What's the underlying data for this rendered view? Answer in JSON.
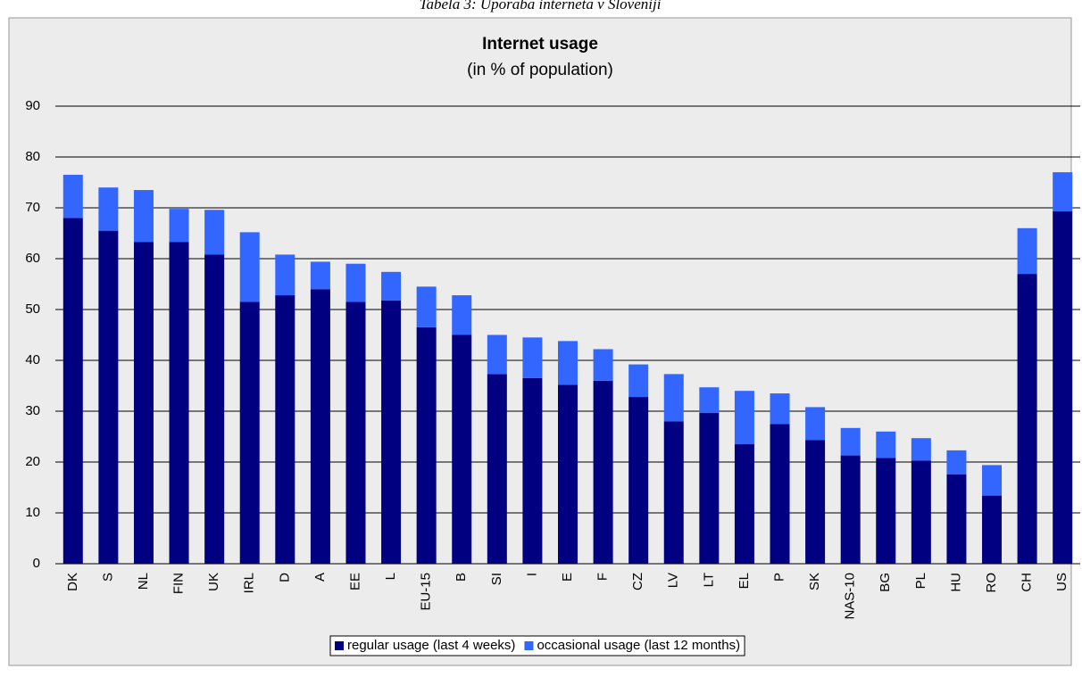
{
  "caption": "Tabela 3: Uporaba interneta v Sloveniji",
  "chart_data": {
    "type": "stacked_bar",
    "title": "Internet usage",
    "subtitle": "(in % of population)",
    "categories": [
      "DK",
      "S",
      "NL",
      "FIN",
      "UK",
      "IRL",
      "D",
      "A",
      "EE",
      "L",
      "EU-15",
      "B",
      "SI",
      "I",
      "E",
      "F",
      "CZ",
      "LV",
      "LT",
      "EL",
      "P",
      "SK",
      "NAS-10",
      "BG",
      "PL",
      "HU",
      "RO",
      "CH",
      "US"
    ],
    "series": [
      {
        "name": "regular usage (last 4 weeks)",
        "color": "#000080",
        "values": [
          68,
          65.5,
          63.3,
          63.3,
          60.8,
          51.5,
          52.8,
          54,
          51.5,
          51.8,
          46.5,
          45,
          37.3,
          36.5,
          35.2,
          36,
          32.8,
          28,
          29.7,
          23.5,
          27.5,
          24.3,
          21.3,
          20.8,
          20.3,
          17.6,
          13.4,
          57,
          69.3
        ]
      },
      {
        "name": "occasional usage (last 12 months)",
        "color": "#3366ff",
        "values": [
          8.5,
          8.5,
          10.2,
          6.5,
          8.8,
          13.7,
          8,
          5.4,
          7.5,
          5.6,
          8,
          7.8,
          7.7,
          8,
          8.6,
          6.2,
          6.4,
          9.3,
          5,
          10.5,
          6,
          6.5,
          5.4,
          5.2,
          4.4,
          4.7,
          6,
          9,
          7.7
        ]
      }
    ],
    "ylim": [
      0,
      90
    ],
    "yticks": [
      0,
      10,
      20,
      30,
      40,
      50,
      60,
      70,
      80,
      90
    ],
    "grid": true,
    "legend": "bottom"
  }
}
